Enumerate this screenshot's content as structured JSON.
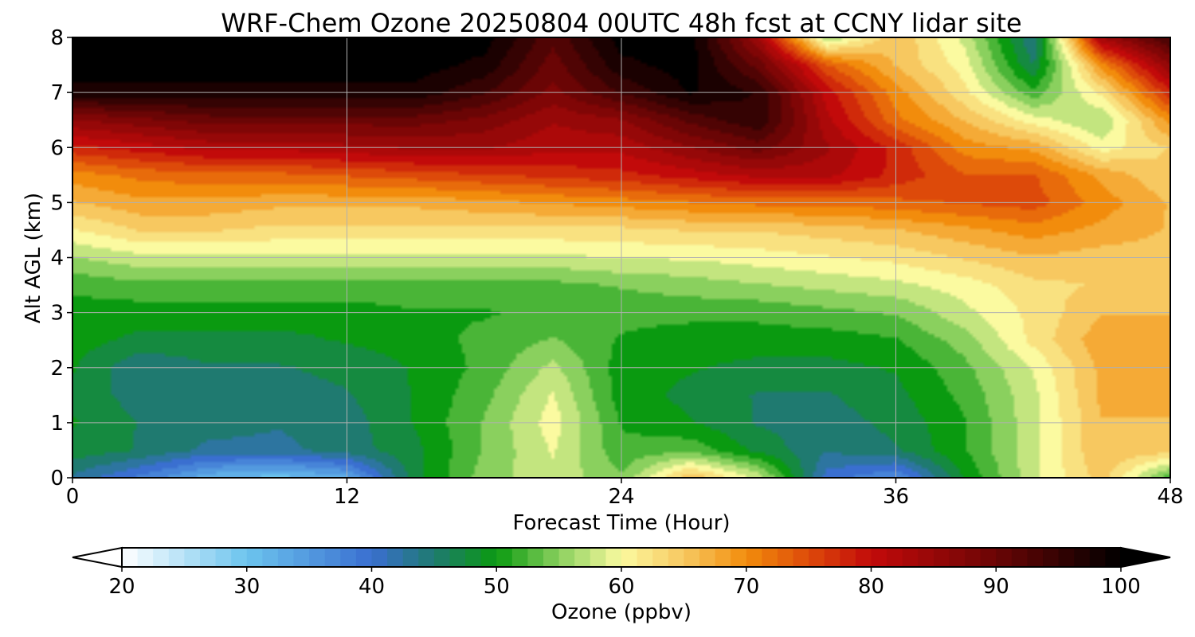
{
  "chart_data": {
    "type": "heatmap",
    "title": "WRF-Chem Ozone  20250804 00UTC 48h fcst at CCNY lidar site",
    "xlabel": "Forecast Time (Hour)",
    "ylabel": "Alt AGL (km)",
    "xlim": [
      0,
      48
    ],
    "ylim": [
      0,
      8
    ],
    "x_ticks": [
      0,
      12,
      24,
      36,
      48
    ],
    "y_ticks": [
      0,
      1,
      2,
      3,
      4,
      5,
      6,
      7,
      8
    ],
    "grid": true,
    "colorbar": {
      "label": "Ozone  (ppbv)",
      "orientation": "horizontal",
      "range": [
        20,
        100
      ],
      "extend": "both",
      "ticks": [
        20,
        30,
        40,
        50,
        60,
        70,
        80,
        90,
        100
      ],
      "colors": [
        {
          "v": 20,
          "c": "#ffffff"
        },
        {
          "v": 30,
          "c": "#6cc4ee"
        },
        {
          "v": 40,
          "c": "#3a6fd0"
        },
        {
          "v": 45,
          "c": "#1f7a70"
        },
        {
          "v": 50,
          "c": "#0a9a10"
        },
        {
          "v": 55,
          "c": "#8ad05e"
        },
        {
          "v": 60,
          "c": "#fbfaa0"
        },
        {
          "v": 65,
          "c": "#f7c860"
        },
        {
          "v": 70,
          "c": "#f28c0c"
        },
        {
          "v": 75,
          "c": "#dd4a0a"
        },
        {
          "v": 80,
          "c": "#c20a0a"
        },
        {
          "v": 90,
          "c": "#6a0505"
        },
        {
          "v": 100,
          "c": "#000000"
        }
      ]
    },
    "x": [
      0,
      3,
      6,
      9,
      12,
      15,
      18,
      21,
      24,
      27,
      30,
      33,
      36,
      39,
      42,
      45,
      48
    ],
    "y": [
      0,
      0.5,
      1,
      1.5,
      2,
      2.5,
      3,
      3.5,
      4,
      4.5,
      5,
      5.5,
      6,
      6.5,
      7,
      7.5,
      8
    ],
    "z": [
      [
        43,
        38,
        32,
        30,
        33,
        48,
        55,
        58,
        54,
        66,
        58,
        40,
        36,
        49,
        58,
        65,
        52
      ],
      [
        48,
        46,
        43,
        43,
        45,
        48,
        54,
        59,
        52,
        53,
        48,
        44,
        46,
        51,
        58,
        66,
        65
      ],
      [
        49,
        46,
        45,
        44,
        45,
        49,
        54,
        60,
        51,
        49,
        46,
        45,
        47,
        51,
        58,
        66,
        66
      ],
      [
        48,
        45,
        45,
        45,
        46,
        49,
        53,
        59,
        50,
        48,
        46,
        46,
        48,
        52,
        58,
        67,
        67
      ],
      [
        49,
        44,
        46,
        46,
        47,
        49,
        52,
        57,
        50,
        49,
        48,
        48,
        49,
        53,
        59,
        67,
        67
      ],
      [
        50,
        48,
        48,
        48,
        49,
        50,
        52,
        54,
        51,
        50,
        50,
        50,
        51,
        55,
        62,
        68,
        68
      ],
      [
        50,
        50,
        50,
        50,
        50,
        51,
        51,
        52,
        52,
        52,
        52,
        53,
        54,
        58,
        62,
        66,
        66
      ],
      [
        52,
        53,
        53,
        53,
        53,
        53,
        53,
        53,
        54,
        55,
        56,
        57,
        58,
        60,
        63,
        64,
        64
      ],
      [
        56,
        58,
        58,
        58,
        58,
        58,
        58,
        58,
        59,
        59,
        60,
        61,
        62,
        64,
        66,
        65,
        65
      ],
      [
        61,
        64,
        64,
        63,
        63,
        63,
        63,
        63,
        63,
        64,
        64,
        65,
        66,
        68,
        70,
        68,
        66
      ],
      [
        66,
        68,
        68,
        67,
        67,
        67,
        68,
        69,
        70,
        71,
        72,
        72,
        73,
        74,
        75,
        70,
        66
      ],
      [
        70,
        72,
        73,
        73,
        74,
        75,
        76,
        77,
        78,
        80,
        82,
        82,
        78,
        74,
        74,
        68,
        64
      ],
      [
        78,
        80,
        82,
        82,
        83,
        84,
        84,
        82,
        82,
        86,
        90,
        84,
        78,
        70,
        68,
        60,
        64
      ],
      [
        86,
        88,
        90,
        90,
        90,
        90,
        88,
        84,
        86,
        92,
        96,
        82,
        72,
        66,
        60,
        56,
        70
      ],
      [
        98,
        98,
        98,
        98,
        98,
        98,
        94,
        88,
        94,
        99,
        96,
        80,
        70,
        62,
        52,
        62,
        78
      ],
      [
        100,
        100,
        100,
        100,
        100,
        100,
        98,
        90,
        98,
        100,
        90,
        74,
        66,
        60,
        46,
        70,
        86
      ],
      [
        100,
        100,
        100,
        100,
        100,
        100,
        100,
        92,
        100,
        100,
        84,
        56,
        66,
        58,
        44,
        84,
        94
      ]
    ]
  }
}
